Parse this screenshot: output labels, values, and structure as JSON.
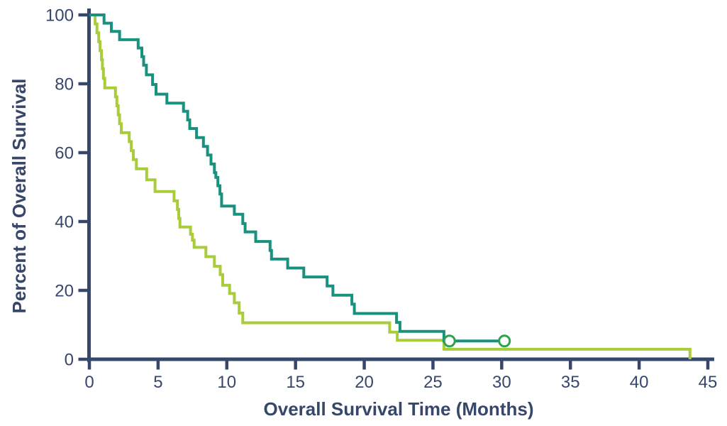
{
  "chart_data": {
    "type": "line",
    "subtype": "kaplan_meier_step",
    "title": "",
    "xlabel": "Overall Survival Time (Months)",
    "ylabel": "Percent of Overall Survival",
    "xlim": [
      0,
      45
    ],
    "ylim": [
      0,
      100
    ],
    "x_ticks": [
      0,
      5,
      10,
      15,
      20,
      25,
      30,
      35,
      40,
      45
    ],
    "y_ticks": [
      0,
      20,
      40,
      60,
      80,
      100
    ],
    "grid": false,
    "legend": "none",
    "background_color": "#ffffff",
    "axis_color": "#36476B",
    "tick_label_color": "#36476B",
    "title_color": "#36476B",
    "series": [
      {
        "name": "survival-arm-teal",
        "color": "#18917F",
        "line_width": 4,
        "end_time": 30.5,
        "censor_marker": {
          "shape": "open-circle",
          "color": "#2CA24E",
          "radius": 7.5,
          "stroke_width": 3
        },
        "censor_points": [
          [
            26.2,
            5.3
          ],
          [
            30.2,
            5.3
          ]
        ],
        "points": [
          [
            0,
            100
          ],
          [
            1.07,
            97.6
          ],
          [
            1.6,
            95.2
          ],
          [
            2.2,
            92.8
          ],
          [
            3.55,
            90.4
          ],
          [
            3.82,
            87.9
          ],
          [
            3.95,
            85.4
          ],
          [
            4.15,
            82.6
          ],
          [
            4.6,
            79.8
          ],
          [
            4.85,
            77.0
          ],
          [
            5.64,
            74.4
          ],
          [
            6.85,
            72.0
          ],
          [
            7.15,
            69.5
          ],
          [
            7.3,
            67.0
          ],
          [
            7.8,
            64.4
          ],
          [
            8.3,
            61.8
          ],
          [
            8.6,
            59.3
          ],
          [
            8.85,
            56.7
          ],
          [
            9.1,
            54.2
          ],
          [
            9.2,
            52.8
          ],
          [
            9.35,
            50.4
          ],
          [
            9.5,
            48.0
          ],
          [
            9.62,
            44.5
          ],
          [
            10.55,
            42.1
          ],
          [
            11.16,
            39.4
          ],
          [
            11.33,
            37.0
          ],
          [
            12.1,
            34.2
          ],
          [
            13.15,
            31.6
          ],
          [
            13.25,
            29.1
          ],
          [
            14.43,
            26.5
          ],
          [
            15.6,
            23.9
          ],
          [
            17.3,
            21.3
          ],
          [
            17.72,
            18.6
          ],
          [
            19.1,
            16.0
          ],
          [
            19.28,
            13.3
          ],
          [
            22.35,
            10.7
          ],
          [
            22.6,
            8.1
          ],
          [
            25.8,
            5.3
          ]
        ]
      },
      {
        "name": "survival-arm-lime",
        "color": "#A8CC3A",
        "line_width": 4,
        "end_time": 43.7,
        "censor_marker": null,
        "censor_points": [],
        "points": [
          [
            0,
            100
          ],
          [
            0.42,
            97.4
          ],
          [
            0.55,
            94.8
          ],
          [
            0.68,
            92.2
          ],
          [
            0.78,
            89.6
          ],
          [
            0.88,
            87.0
          ],
          [
            0.95,
            84.4
          ],
          [
            1.02,
            81.6
          ],
          [
            1.12,
            78.8
          ],
          [
            1.9,
            76.2
          ],
          [
            2.0,
            73.6
          ],
          [
            2.1,
            71.0
          ],
          [
            2.2,
            68.4
          ],
          [
            2.32,
            65.8
          ],
          [
            2.9,
            63.2
          ],
          [
            3.05,
            60.6
          ],
          [
            3.2,
            58.0
          ],
          [
            3.42,
            55.3
          ],
          [
            4.17,
            52.1
          ],
          [
            4.78,
            48.7
          ],
          [
            6.16,
            46.0
          ],
          [
            6.41,
            43.5
          ],
          [
            6.5,
            40.9
          ],
          [
            6.59,
            38.4
          ],
          [
            7.36,
            36.3
          ],
          [
            7.5,
            34.6
          ],
          [
            7.62,
            32.5
          ],
          [
            8.48,
            29.8
          ],
          [
            9.1,
            27.0
          ],
          [
            9.52,
            24.6
          ],
          [
            9.7,
            21.5
          ],
          [
            10.2,
            19.1
          ],
          [
            10.55,
            16.4
          ],
          [
            10.9,
            13.4
          ],
          [
            11.16,
            10.6
          ],
          [
            21.85,
            7.9
          ],
          [
            22.4,
            5.5
          ],
          [
            25.8,
            2.9
          ],
          [
            43.7,
            0
          ]
        ]
      }
    ]
  }
}
